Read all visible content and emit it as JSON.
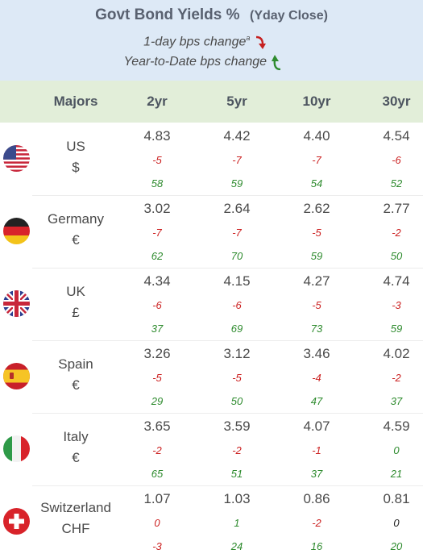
{
  "header": {
    "title": "Govt Bond Yields %",
    "subtitle": "(Yday Close)",
    "legend_day": "1-day bps change",
    "legend_day_sup": "a",
    "legend_ytd": "Year-to-Date bps change",
    "colors": {
      "background": "#dde9f6",
      "down_arrow": "#c62020",
      "up_arrow": "#2e8b2e"
    }
  },
  "table": {
    "group_label": "Majors",
    "columns": [
      "2yr",
      "5yr",
      "10yr",
      "30yr"
    ],
    "colors": {
      "header_bg": "#e2eed9",
      "negative": "#cc2222",
      "positive": "#2e8b2e"
    },
    "rows": [
      {
        "country": "US",
        "currency": "$",
        "flag_icon": "us-flag-icon",
        "yields": [
          "4.83",
          "4.42",
          "4.40",
          "4.54"
        ],
        "day": [
          "-5",
          "-7",
          "-7",
          "-6"
        ],
        "ytd": [
          "58",
          "59",
          "54",
          "52"
        ]
      },
      {
        "country": "Germany",
        "currency": "€",
        "flag_icon": "germany-flag-icon",
        "yields": [
          "3.02",
          "2.64",
          "2.62",
          "2.77"
        ],
        "day": [
          "-7",
          "-7",
          "-5",
          "-2"
        ],
        "ytd": [
          "62",
          "70",
          "59",
          "50"
        ]
      },
      {
        "country": "UK",
        "currency": "£",
        "flag_icon": "uk-flag-icon",
        "yields": [
          "4.34",
          "4.15",
          "4.27",
          "4.74"
        ],
        "day": [
          "-6",
          "-6",
          "-5",
          "-3"
        ],
        "ytd": [
          "37",
          "69",
          "73",
          "59"
        ]
      },
      {
        "country": "Spain",
        "currency": "€",
        "flag_icon": "spain-flag-icon",
        "yields": [
          "3.26",
          "3.12",
          "3.46",
          "4.02"
        ],
        "day": [
          "-5",
          "-5",
          "-4",
          "-2"
        ],
        "ytd": [
          "29",
          "50",
          "47",
          "37"
        ]
      },
      {
        "country": "Italy",
        "currency": "€",
        "flag_icon": "italy-flag-icon",
        "yields": [
          "3.65",
          "3.59",
          "4.07",
          "4.59"
        ],
        "day": [
          "-2",
          "-2",
          "-1",
          "0"
        ],
        "ytd": [
          "65",
          "51",
          "37",
          "21"
        ]
      },
      {
        "country": "Switzerland",
        "currency": "CHF",
        "flag_icon": "switzerland-flag-icon",
        "yields": [
          "1.07",
          "1.03",
          "0.86",
          "0.81"
        ],
        "day": [
          "0",
          "1",
          "-2",
          "0"
        ],
        "ytd": [
          "-3",
          "24",
          "16",
          "20"
        ]
      }
    ]
  }
}
